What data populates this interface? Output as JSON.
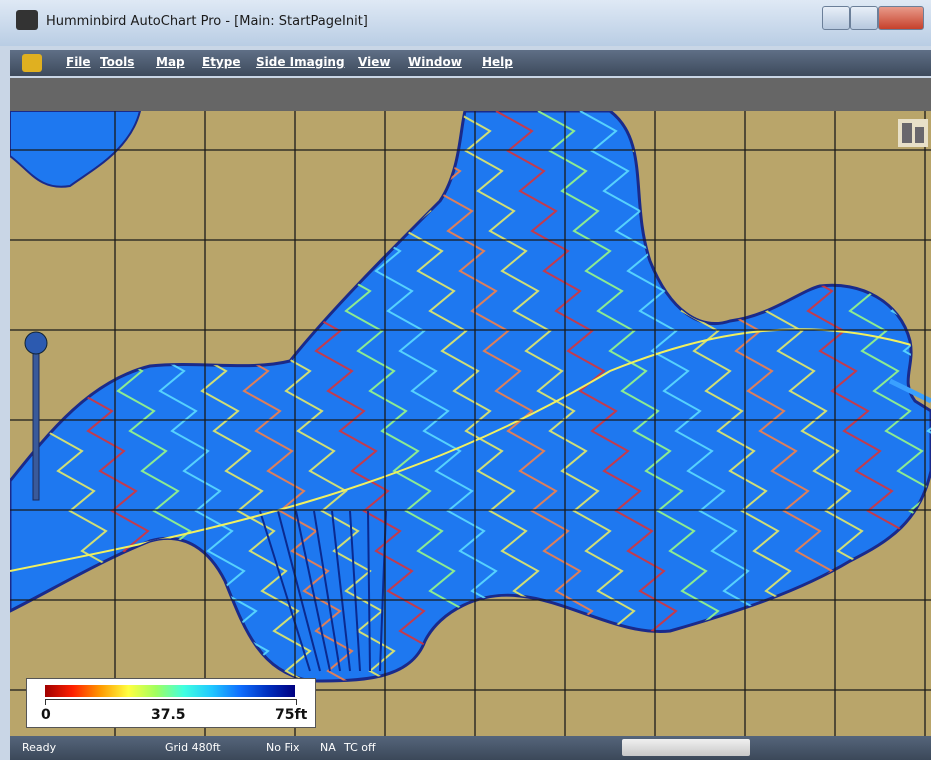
{
  "window": {
    "title": "Humminbird AutoChart Pro - [Main: StartPageInit]"
  },
  "menu": [
    "File",
    "Tools",
    "Map",
    "Etype",
    "Side Imaging",
    "View",
    "Window",
    "Help"
  ],
  "legend": {
    "labels": [
      "0",
      "37.5",
      "75ft"
    ]
  },
  "status": [
    "Ready",
    "Grid 480ft",
    "No Fix",
    "NA",
    "TC off"
  ]
}
